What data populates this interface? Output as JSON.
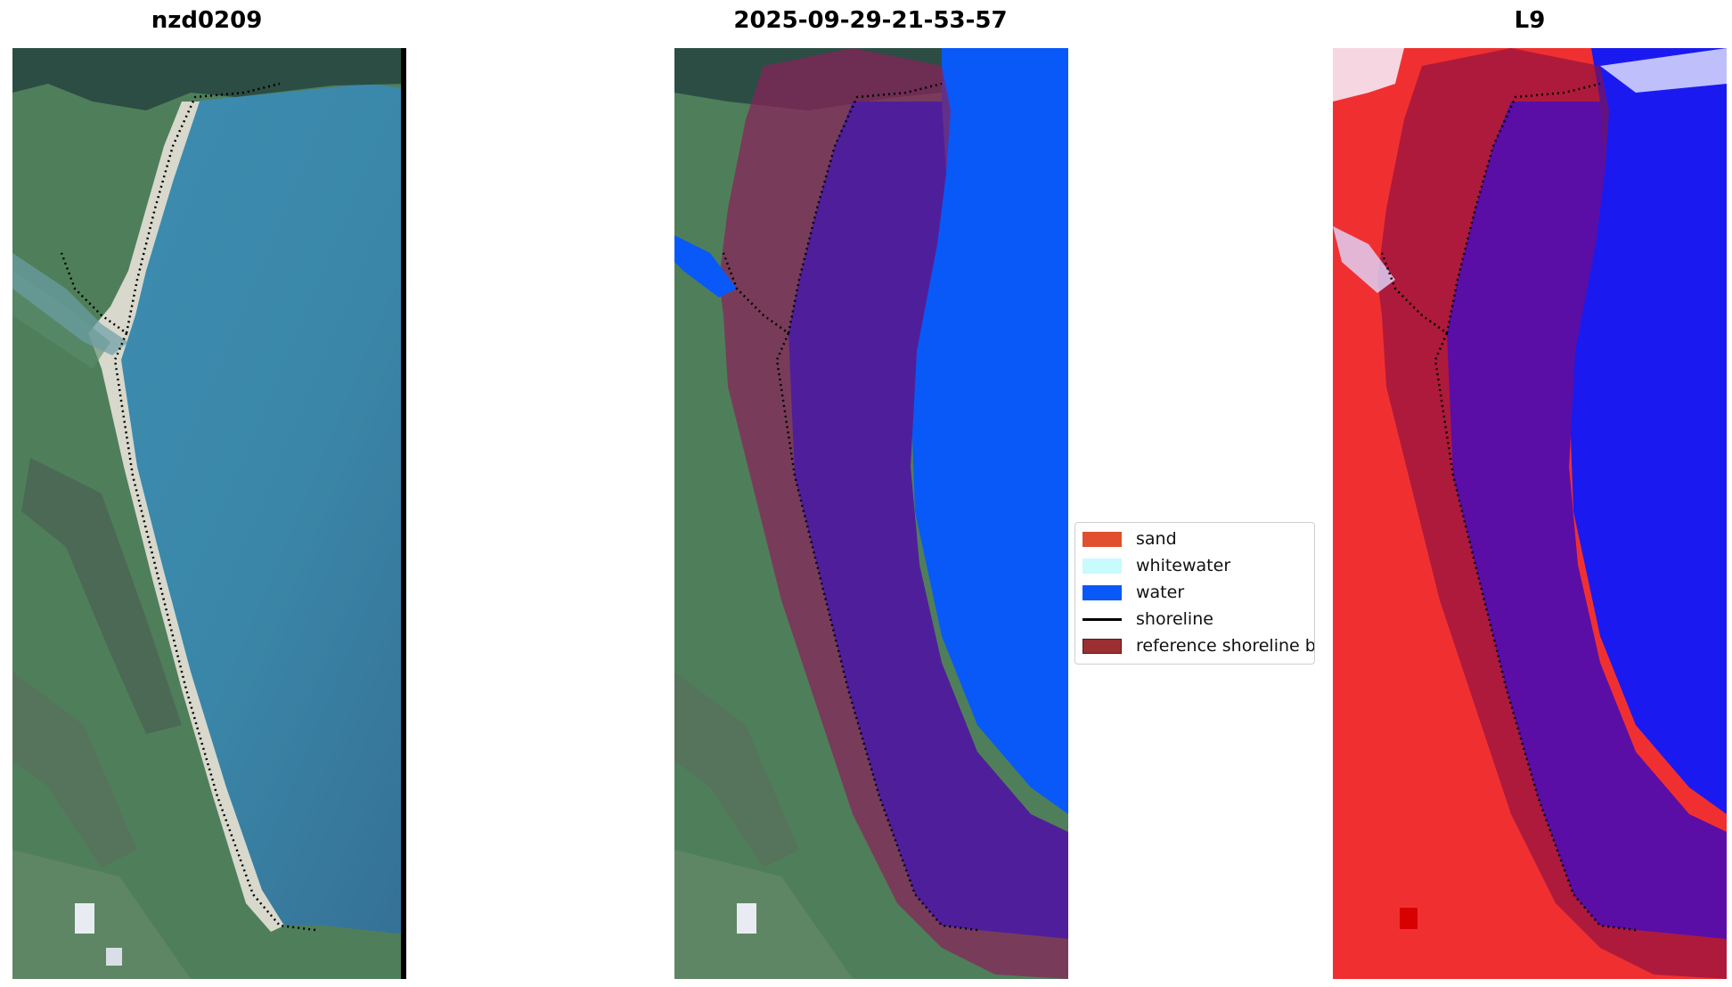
{
  "panels": [
    {
      "title": "nzd0209"
    },
    {
      "title": "2025-09-29-21-53-57"
    },
    {
      "title": "L9"
    }
  ],
  "legend": {
    "items": [
      {
        "label": "sand",
        "kind": "patch",
        "color": "#e0502e"
      },
      {
        "label": "whitewater",
        "kind": "patch",
        "color": "#c8fbfb"
      },
      {
        "label": "water",
        "kind": "patch",
        "color": "#0859f7"
      },
      {
        "label": "shoreline",
        "kind": "line",
        "color": "#000000"
      },
      {
        "label": "reference shoreline b",
        "kind": "patch",
        "color": "#9b2f31"
      }
    ]
  },
  "colors": {
    "water_satellite": "#3a86a8",
    "land_green": "#4f7f5a",
    "sand_beach": "#d8d8cc",
    "buffer_overlay": "#8a1f5a",
    "water_class": "#0859f7",
    "l9_land": "#f03030",
    "l9_water": "#1a1af0",
    "l9_buffer": "#8a1044"
  }
}
